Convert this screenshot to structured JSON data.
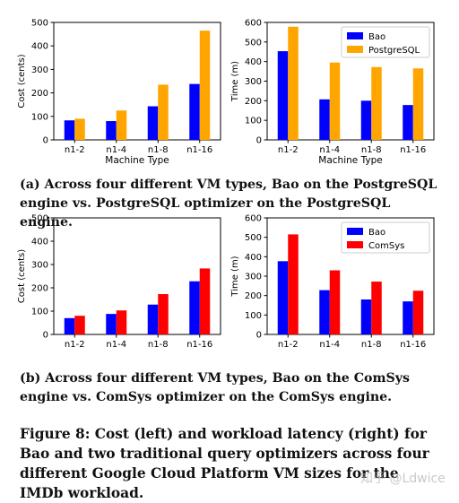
{
  "chart_data": [
    {
      "type": "bar",
      "panel": "a",
      "side": "left",
      "categories": [
        "n1-2",
        "n1-4",
        "n1-8",
        "n1-16"
      ],
      "series": [
        {
          "name": "",
          "color": "#0000ff",
          "values": [
            83,
            80,
            143,
            238
          ]
        },
        {
          "name": "",
          "color": "#ffa500",
          "values": [
            90,
            125,
            235,
            465
          ]
        }
      ],
      "xlabel": "Machine Type",
      "ylabel": "Cost (cents)",
      "ylim": [
        0,
        500
      ],
      "yticks": [
        "0",
        "100",
        "200",
        "300",
        "400",
        "500"
      ],
      "legend": null
    },
    {
      "type": "bar",
      "panel": "a",
      "side": "right",
      "categories": [
        "n1-2",
        "n1-4",
        "n1-8",
        "n1-16"
      ],
      "series": [
        {
          "name": "Bao",
          "color": "#0000ff",
          "values": [
            453,
            207,
            200,
            178
          ]
        },
        {
          "name": "PostgreSQL",
          "color": "#ffa500",
          "values": [
            578,
            395,
            372,
            365
          ]
        }
      ],
      "xlabel": "Machine Type",
      "ylabel": "Time (m)",
      "ylim": [
        0,
        600
      ],
      "yticks": [
        "0",
        "100",
        "200",
        "300",
        "400",
        "500",
        "600"
      ],
      "legend": "top-right"
    },
    {
      "type": "bar",
      "panel": "b",
      "side": "left",
      "categories": [
        "n1-2",
        "n1-4",
        "n1-8",
        "n1-16"
      ],
      "series": [
        {
          "name": "",
          "color": "#0000ff",
          "values": [
            70,
            88,
            128,
            228
          ]
        },
        {
          "name": "",
          "color": "#ff0000",
          "values": [
            80,
            103,
            173,
            283
          ]
        }
      ],
      "xlabel": "",
      "ylabel": "Cost (cents)",
      "ylim": [
        0,
        500
      ],
      "yticks": [
        "0",
        "100",
        "200",
        "300",
        "400",
        "500"
      ],
      "legend": null
    },
    {
      "type": "bar",
      "panel": "b",
      "side": "right",
      "categories": [
        "n1-2",
        "n1-4",
        "n1-8",
        "n1-16"
      ],
      "series": [
        {
          "name": "Bao",
          "color": "#0000ff",
          "values": [
            377,
            228,
            180,
            170
          ]
        },
        {
          "name": "ComSys",
          "color": "#ff0000",
          "values": [
            515,
            330,
            272,
            225
          ]
        }
      ],
      "xlabel": "",
      "ylabel": "Time (m)",
      "ylim": [
        0,
        600
      ],
      "yticks": [
        "0",
        "100",
        "200",
        "300",
        "400",
        "500",
        "600"
      ],
      "legend": "top-right"
    }
  ],
  "captions": {
    "a": "(a) Across four different VM types, Bao on the PostgreSQL engine vs. PostgreSQL optimizer on the PostgreSQL engine.",
    "b": "(b) Across four different VM types, Bao on the ComSys engine vs. ComSys optimizer on the ComSys engine.",
    "figure": "Figure 8: Cost (left) and workload latency (right) for Bao and two traditional query optimizers across four different Google Cloud Platform VM sizes for the IMDb workload."
  },
  "watermark": "知乎 @Ldwice"
}
